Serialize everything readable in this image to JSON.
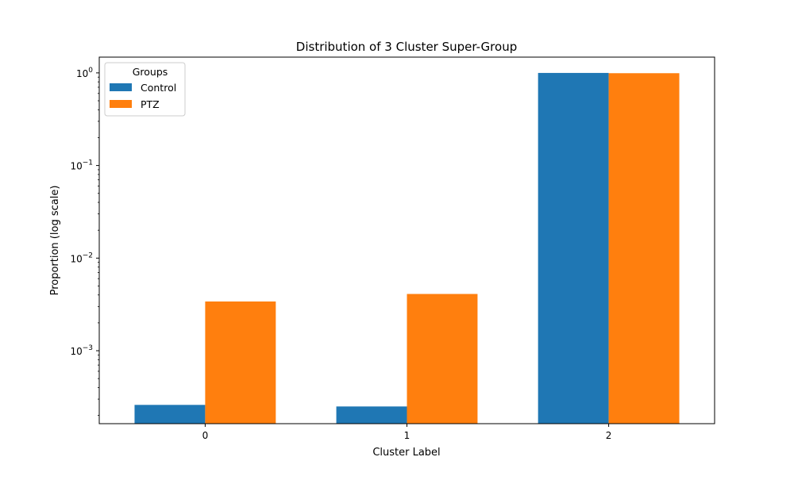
{
  "chart_data": {
    "type": "bar",
    "title": "Distribution of 3 Cluster Super-Group",
    "xlabel": "Cluster Label",
    "ylabel": "Proportion (log scale)",
    "categories": [
      "0",
      "1",
      "2"
    ],
    "series": [
      {
        "name": "Control",
        "color": "#1f77b4",
        "values": [
          0.00026,
          0.00025,
          0.999
        ]
      },
      {
        "name": "PTZ",
        "color": "#ff7f0e",
        "values": [
          0.0034,
          0.0041,
          0.9925
        ]
      }
    ],
    "yscale": "log",
    "ylim": [
      0.000163,
      1.48
    ],
    "yticks": [
      {
        "value": 0.001,
        "base": "10",
        "exp": "−3"
      },
      {
        "value": 0.01,
        "base": "10",
        "exp": "−2"
      },
      {
        "value": 0.1,
        "base": "10",
        "exp": "−1"
      },
      {
        "value": 1,
        "base": "10",
        "exp": "0"
      }
    ],
    "legend": {
      "title": "Groups",
      "position": "top-left"
    },
    "grid": false
  }
}
